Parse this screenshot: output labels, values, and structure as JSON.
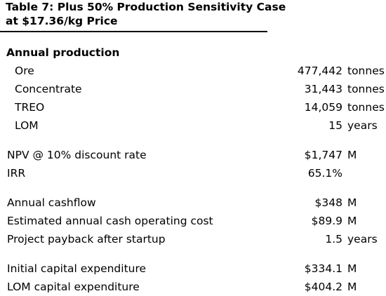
{
  "title": {
    "line1": "Table 7: Plus 50% Production Sensitivity Case",
    "line2": "at $17.36/kg Price"
  },
  "annual_production": {
    "heading": "Annual production",
    "items": [
      {
        "label": "Ore",
        "value": "477,442",
        "unit": "tonnes"
      },
      {
        "label": "Concentrate",
        "value": "31,443",
        "unit": "tonnes"
      },
      {
        "label": "TREO",
        "value": "14,059",
        "unit": "tonnes"
      },
      {
        "label": "LOM",
        "value": "15",
        "unit": "years"
      }
    ]
  },
  "returns": [
    {
      "label": "NPV @ 10% discount rate",
      "value": "$1,747",
      "unit": "M"
    },
    {
      "label": "IRR",
      "value": "65.1%",
      "unit": ""
    }
  ],
  "cashflow": [
    {
      "label": "Annual cashflow",
      "value": "$348",
      "unit": "M"
    },
    {
      "label": "Estimated annual cash operating cost",
      "value": "$89.9",
      "unit": "M"
    },
    {
      "label": "Project payback after startup",
      "value": "1.5",
      "unit": "years"
    }
  ],
  "capital": [
    {
      "label": "Initial capital expenditure",
      "value": "$334.1",
      "unit": "M"
    },
    {
      "label": "LOM capital expenditure",
      "value": "$404.2",
      "unit": "M"
    }
  ]
}
